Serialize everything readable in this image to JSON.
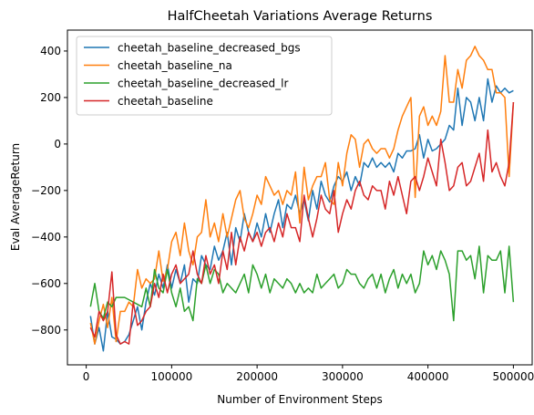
{
  "chart_data": {
    "type": "line",
    "title": "HalfCheetah Variations Average Returns",
    "xlabel": "Number of Environment Steps",
    "ylabel": "Eval AverageReturn",
    "xlim": [
      -22000,
      522000
    ],
    "ylim": [
      -950,
      490
    ],
    "xticks": [
      0,
      100000,
      200000,
      300000,
      400000,
      500000
    ],
    "xtick_labels": [
      "0",
      "100000",
      "200000",
      "300000",
      "400000",
      "500000"
    ],
    "yticks": [
      -800,
      -600,
      -400,
      -200,
      0,
      200,
      400
    ],
    "ytick_labels": [
      "−800",
      "−600",
      "−400",
      "−200",
      "0",
      "200",
      "400"
    ],
    "legend_position": "top-left",
    "grid": false,
    "series": [
      {
        "name": "cheetah_baseline_decreased_bgs",
        "color": "#1f77b4",
        "x": [
          5000,
          10000,
          15000,
          20000,
          25000,
          30000,
          35000,
          40000,
          45000,
          50000,
          55000,
          60000,
          65000,
          70000,
          75000,
          80000,
          85000,
          90000,
          95000,
          100000,
          105000,
          110000,
          115000,
          120000,
          125000,
          130000,
          135000,
          140000,
          145000,
          150000,
          155000,
          160000,
          165000,
          170000,
          175000,
          180000,
          185000,
          190000,
          195000,
          200000,
          205000,
          210000,
          215000,
          220000,
          225000,
          230000,
          235000,
          240000,
          245000,
          250000,
          255000,
          260000,
          265000,
          270000,
          275000,
          280000,
          285000,
          290000,
          295000,
          300000,
          305000,
          310000,
          315000,
          320000,
          325000,
          330000,
          335000,
          340000,
          345000,
          350000,
          355000,
          360000,
          365000,
          370000,
          375000,
          380000,
          385000,
          390000,
          395000,
          400000,
          405000,
          410000,
          415000,
          420000,
          425000,
          430000,
          435000,
          440000,
          445000,
          450000,
          455000,
          460000,
          465000,
          470000,
          475000,
          480000,
          485000,
          490000,
          495000,
          500000
        ],
        "values": [
          -740,
          -860,
          -790,
          -890,
          -720,
          -830,
          -840,
          -860,
          -850,
          -820,
          -760,
          -700,
          -800,
          -680,
          -600,
          -650,
          -560,
          -620,
          -520,
          -620,
          -540,
          -600,
          -520,
          -680,
          -580,
          -600,
          -480,
          -520,
          -540,
          -440,
          -500,
          -460,
          -380,
          -520,
          -360,
          -420,
          -300,
          -380,
          -420,
          -340,
          -400,
          -300,
          -380,
          -300,
          -240,
          -360,
          -260,
          -280,
          -220,
          -300,
          -240,
          -330,
          -200,
          -280,
          -160,
          -220,
          -250,
          -180,
          -140,
          -160,
          -120,
          -200,
          -140,
          -180,
          -80,
          -100,
          -60,
          -100,
          -80,
          -100,
          -80,
          -120,
          -40,
          -60,
          -30,
          -30,
          -20,
          40,
          -60,
          20,
          -30,
          -20,
          0,
          20,
          80,
          60,
          240,
          80,
          200,
          180,
          100,
          200,
          100,
          280,
          180,
          250,
          220,
          240,
          220,
          230
        ]
      },
      {
        "name": "cheetah_baseline_na",
        "color": "#ff7f0e",
        "x": [
          5000,
          10000,
          15000,
          20000,
          25000,
          30000,
          35000,
          40000,
          45000,
          50000,
          55000,
          60000,
          65000,
          70000,
          75000,
          80000,
          85000,
          90000,
          95000,
          100000,
          105000,
          110000,
          115000,
          120000,
          125000,
          130000,
          135000,
          140000,
          145000,
          150000,
          155000,
          160000,
          165000,
          170000,
          175000,
          180000,
          185000,
          190000,
          195000,
          200000,
          205000,
          210000,
          215000,
          220000,
          225000,
          230000,
          235000,
          240000,
          245000,
          250000,
          255000,
          260000,
          265000,
          270000,
          275000,
          280000,
          285000,
          290000,
          295000,
          300000,
          305000,
          310000,
          315000,
          320000,
          325000,
          330000,
          335000,
          340000,
          345000,
          350000,
          355000,
          360000,
          365000,
          370000,
          375000,
          380000,
          385000,
          390000,
          395000,
          400000,
          405000,
          410000,
          415000,
          420000,
          425000,
          430000,
          435000,
          440000,
          445000,
          450000,
          455000,
          460000,
          465000,
          470000,
          475000,
          480000,
          485000,
          490000,
          495000,
          500000
        ],
        "values": [
          -770,
          -860,
          -760,
          -690,
          -790,
          -660,
          -850,
          -720,
          -720,
          -680,
          -700,
          -540,
          -620,
          -580,
          -600,
          -580,
          -460,
          -590,
          -540,
          -420,
          -380,
          -480,
          -340,
          -460,
          -520,
          -400,
          -380,
          -240,
          -400,
          -340,
          -420,
          -300,
          -400,
          -320,
          -240,
          -200,
          -320,
          -360,
          -300,
          -220,
          -260,
          -140,
          -180,
          -220,
          -200,
          -260,
          -200,
          -220,
          -120,
          -340,
          -100,
          -240,
          -180,
          -140,
          -140,
          -80,
          -240,
          -260,
          -80,
          -180,
          -40,
          40,
          20,
          -100,
          0,
          20,
          -20,
          -40,
          -20,
          -20,
          -60,
          -20,
          60,
          120,
          160,
          200,
          -230,
          120,
          160,
          80,
          120,
          80,
          140,
          380,
          180,
          180,
          320,
          240,
          360,
          380,
          420,
          380,
          360,
          320,
          320,
          220,
          220,
          200,
          -140,
          180
        ]
      },
      {
        "name": "cheetah_baseline_decreased_lr",
        "color": "#2ca02c",
        "x": [
          5000,
          10000,
          15000,
          20000,
          25000,
          30000,
          35000,
          40000,
          45000,
          50000,
          55000,
          60000,
          65000,
          70000,
          75000,
          80000,
          85000,
          90000,
          95000,
          100000,
          105000,
          110000,
          115000,
          120000,
          125000,
          130000,
          135000,
          140000,
          145000,
          150000,
          155000,
          160000,
          165000,
          170000,
          175000,
          180000,
          185000,
          190000,
          195000,
          200000,
          205000,
          210000,
          215000,
          220000,
          225000,
          230000,
          235000,
          240000,
          245000,
          250000,
          255000,
          260000,
          265000,
          270000,
          275000,
          280000,
          285000,
          290000,
          295000,
          300000,
          305000,
          310000,
          315000,
          320000,
          325000,
          330000,
          335000,
          340000,
          345000,
          350000,
          355000,
          360000,
          365000,
          370000,
          375000,
          380000,
          385000,
          390000,
          395000,
          400000,
          405000,
          410000,
          415000,
          420000,
          425000,
          430000,
          435000,
          440000,
          445000,
          450000,
          455000,
          460000,
          465000,
          470000,
          475000,
          480000,
          485000,
          490000,
          495000,
          500000
        ],
        "values": [
          -700,
          -600,
          -720,
          -750,
          -680,
          -700,
          -660,
          -660,
          -660,
          -670,
          -680,
          -690,
          -700,
          -620,
          -700,
          -540,
          -620,
          -640,
          -540,
          -640,
          -700,
          -620,
          -720,
          -700,
          -760,
          -580,
          -600,
          -520,
          -600,
          -540,
          -560,
          -640,
          -600,
          -620,
          -640,
          -600,
          -560,
          -640,
          -520,
          -560,
          -620,
          -560,
          -640,
          -580,
          -600,
          -620,
          -580,
          -600,
          -640,
          -600,
          -640,
          -620,
          -640,
          -560,
          -620,
          -600,
          -580,
          -560,
          -620,
          -600,
          -540,
          -560,
          -560,
          -600,
          -620,
          -580,
          -560,
          -620,
          -560,
          -640,
          -580,
          -540,
          -620,
          -560,
          -600,
          -560,
          -640,
          -600,
          -460,
          -520,
          -480,
          -540,
          -460,
          -500,
          -560,
          -760,
          -460,
          -460,
          -500,
          -480,
          -580,
          -440,
          -640,
          -480,
          -500,
          -500,
          -460,
          -640,
          -440,
          -680
        ]
      },
      {
        "name": "cheetah_baseline",
        "color": "#d62728",
        "x": [
          5000,
          10000,
          15000,
          20000,
          25000,
          30000,
          35000,
          40000,
          45000,
          50000,
          55000,
          60000,
          65000,
          70000,
          75000,
          80000,
          85000,
          90000,
          95000,
          100000,
          105000,
          110000,
          115000,
          120000,
          125000,
          130000,
          135000,
          140000,
          145000,
          150000,
          155000,
          160000,
          165000,
          170000,
          175000,
          180000,
          185000,
          190000,
          195000,
          200000,
          205000,
          210000,
          215000,
          220000,
          225000,
          230000,
          235000,
          240000,
          245000,
          250000,
          255000,
          260000,
          265000,
          270000,
          275000,
          280000,
          285000,
          290000,
          295000,
          300000,
          305000,
          310000,
          315000,
          320000,
          325000,
          330000,
          335000,
          340000,
          345000,
          350000,
          355000,
          360000,
          365000,
          370000,
          375000,
          380000,
          385000,
          390000,
          395000,
          400000,
          405000,
          410000,
          415000,
          420000,
          425000,
          430000,
          435000,
          440000,
          445000,
          450000,
          455000,
          460000,
          465000,
          470000,
          475000,
          480000,
          485000,
          490000,
          495000,
          500000
        ],
        "values": [
          -790,
          -830,
          -720,
          -760,
          -720,
          -550,
          -820,
          -860,
          -850,
          -860,
          -680,
          -780,
          -760,
          -720,
          -700,
          -600,
          -660,
          -560,
          -640,
          -560,
          -520,
          -600,
          -580,
          -560,
          -460,
          -560,
          -600,
          -480,
          -560,
          -520,
          -600,
          -460,
          -540,
          -380,
          -520,
          -400,
          -460,
          -380,
          -420,
          -380,
          -440,
          -380,
          -360,
          -420,
          -340,
          -400,
          -300,
          -360,
          -360,
          -420,
          -220,
          -320,
          -400,
          -320,
          -220,
          -280,
          -300,
          -200,
          -380,
          -300,
          -240,
          -280,
          -200,
          -160,
          -220,
          -240,
          -180,
          -200,
          -200,
          -280,
          -160,
          -220,
          -140,
          -220,
          -300,
          -160,
          -140,
          -200,
          -140,
          -60,
          -120,
          -180,
          20,
          -80,
          -200,
          -180,
          -100,
          -80,
          -180,
          -160,
          -100,
          -40,
          -160,
          60,
          -120,
          -80,
          -140,
          -180,
          -80,
          180
        ]
      }
    ]
  }
}
